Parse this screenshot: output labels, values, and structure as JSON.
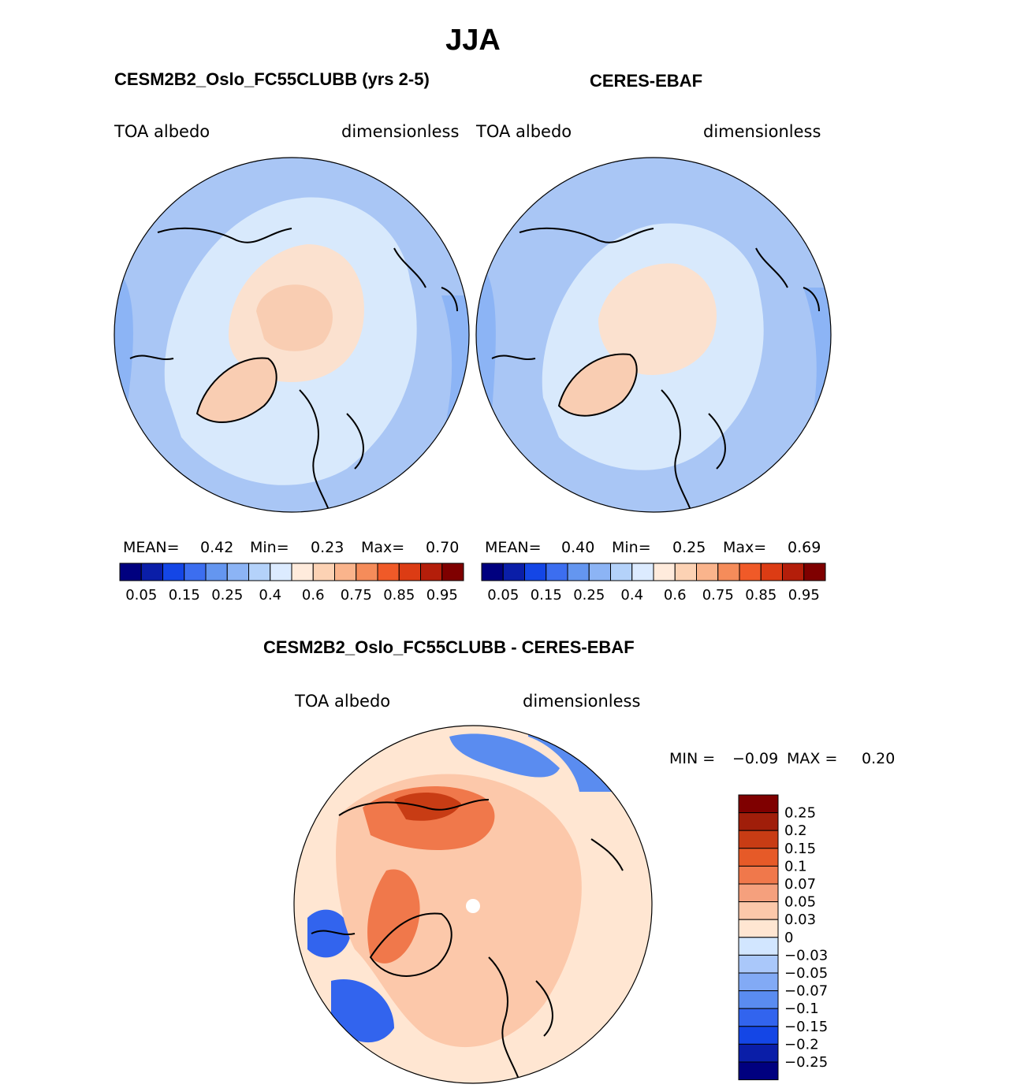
{
  "figure": {
    "season": "JJA",
    "colors": {
      "seq": [
        "#00007f",
        "#0a1ea8",
        "#1446e6",
        "#3c6ef0",
        "#6496f0",
        "#8cb4f5",
        "#b4d2fa",
        "#dcebff",
        "#ffebdc",
        "#fcd2b4",
        "#fab48c",
        "#f58c5a",
        "#f05a28",
        "#dc3c14",
        "#b41e0a",
        "#7f0000"
      ],
      "diff": [
        "#00007f",
        "#0a1ea8",
        "#1446e6",
        "#3264ee",
        "#5a8cf0",
        "#82aaf5",
        "#aac8fa",
        "#d2e6ff",
        "#ffe6d2",
        "#fcc8aa",
        "#f5a07d",
        "#f0784b",
        "#e65a28",
        "#c83c14",
        "#a01e0a",
        "#7f0000"
      ],
      "ocean": "#a9c6f5",
      "ice": "#fbe1cf",
      "cap": "#f9cdb2",
      "mid": "#d8e9fc",
      "outline": "#000000"
    }
  },
  "panels": {
    "model": {
      "title": "CESM2B2_Oslo_FC55CLUBB (yrs 2-5)",
      "variable": "TOA  albedo",
      "units": "dimensionless",
      "mean_label": "MEAN=",
      "mean": "0.42",
      "min_label": "Min=",
      "min": "0.23",
      "max_label": "Max=",
      "max": "0.70"
    },
    "obs": {
      "title": "CERES-EBAF",
      "variable": "TOA  albedo",
      "units": "dimensionless",
      "mean_label": "MEAN=",
      "mean": "0.40",
      "min_label": "Min=",
      "min": "0.25",
      "max_label": "Max=",
      "max": "0.69"
    },
    "diff": {
      "title": "CESM2B2_Oslo_FC55CLUBB - CERES-EBAF",
      "variable": "TOA  albedo",
      "units": "dimensionless",
      "min_label": "MIN =",
      "min": "−0.09",
      "max_label": "MAX =",
      "max": "0.20"
    }
  },
  "colorbars": {
    "sequential_ticks": [
      "0.05",
      "0.15",
      "0.25",
      "0.4",
      "0.6",
      "0.75",
      "0.85",
      "0.95"
    ],
    "diff_ticks": [
      "0.25",
      "0.2",
      "0.15",
      "0.1",
      "0.07",
      "0.05",
      "0.03",
      "0",
      "−0.03",
      "−0.05",
      "−0.07",
      "−0.1",
      "−0.15",
      "−0.2",
      "−0.25"
    ]
  }
}
